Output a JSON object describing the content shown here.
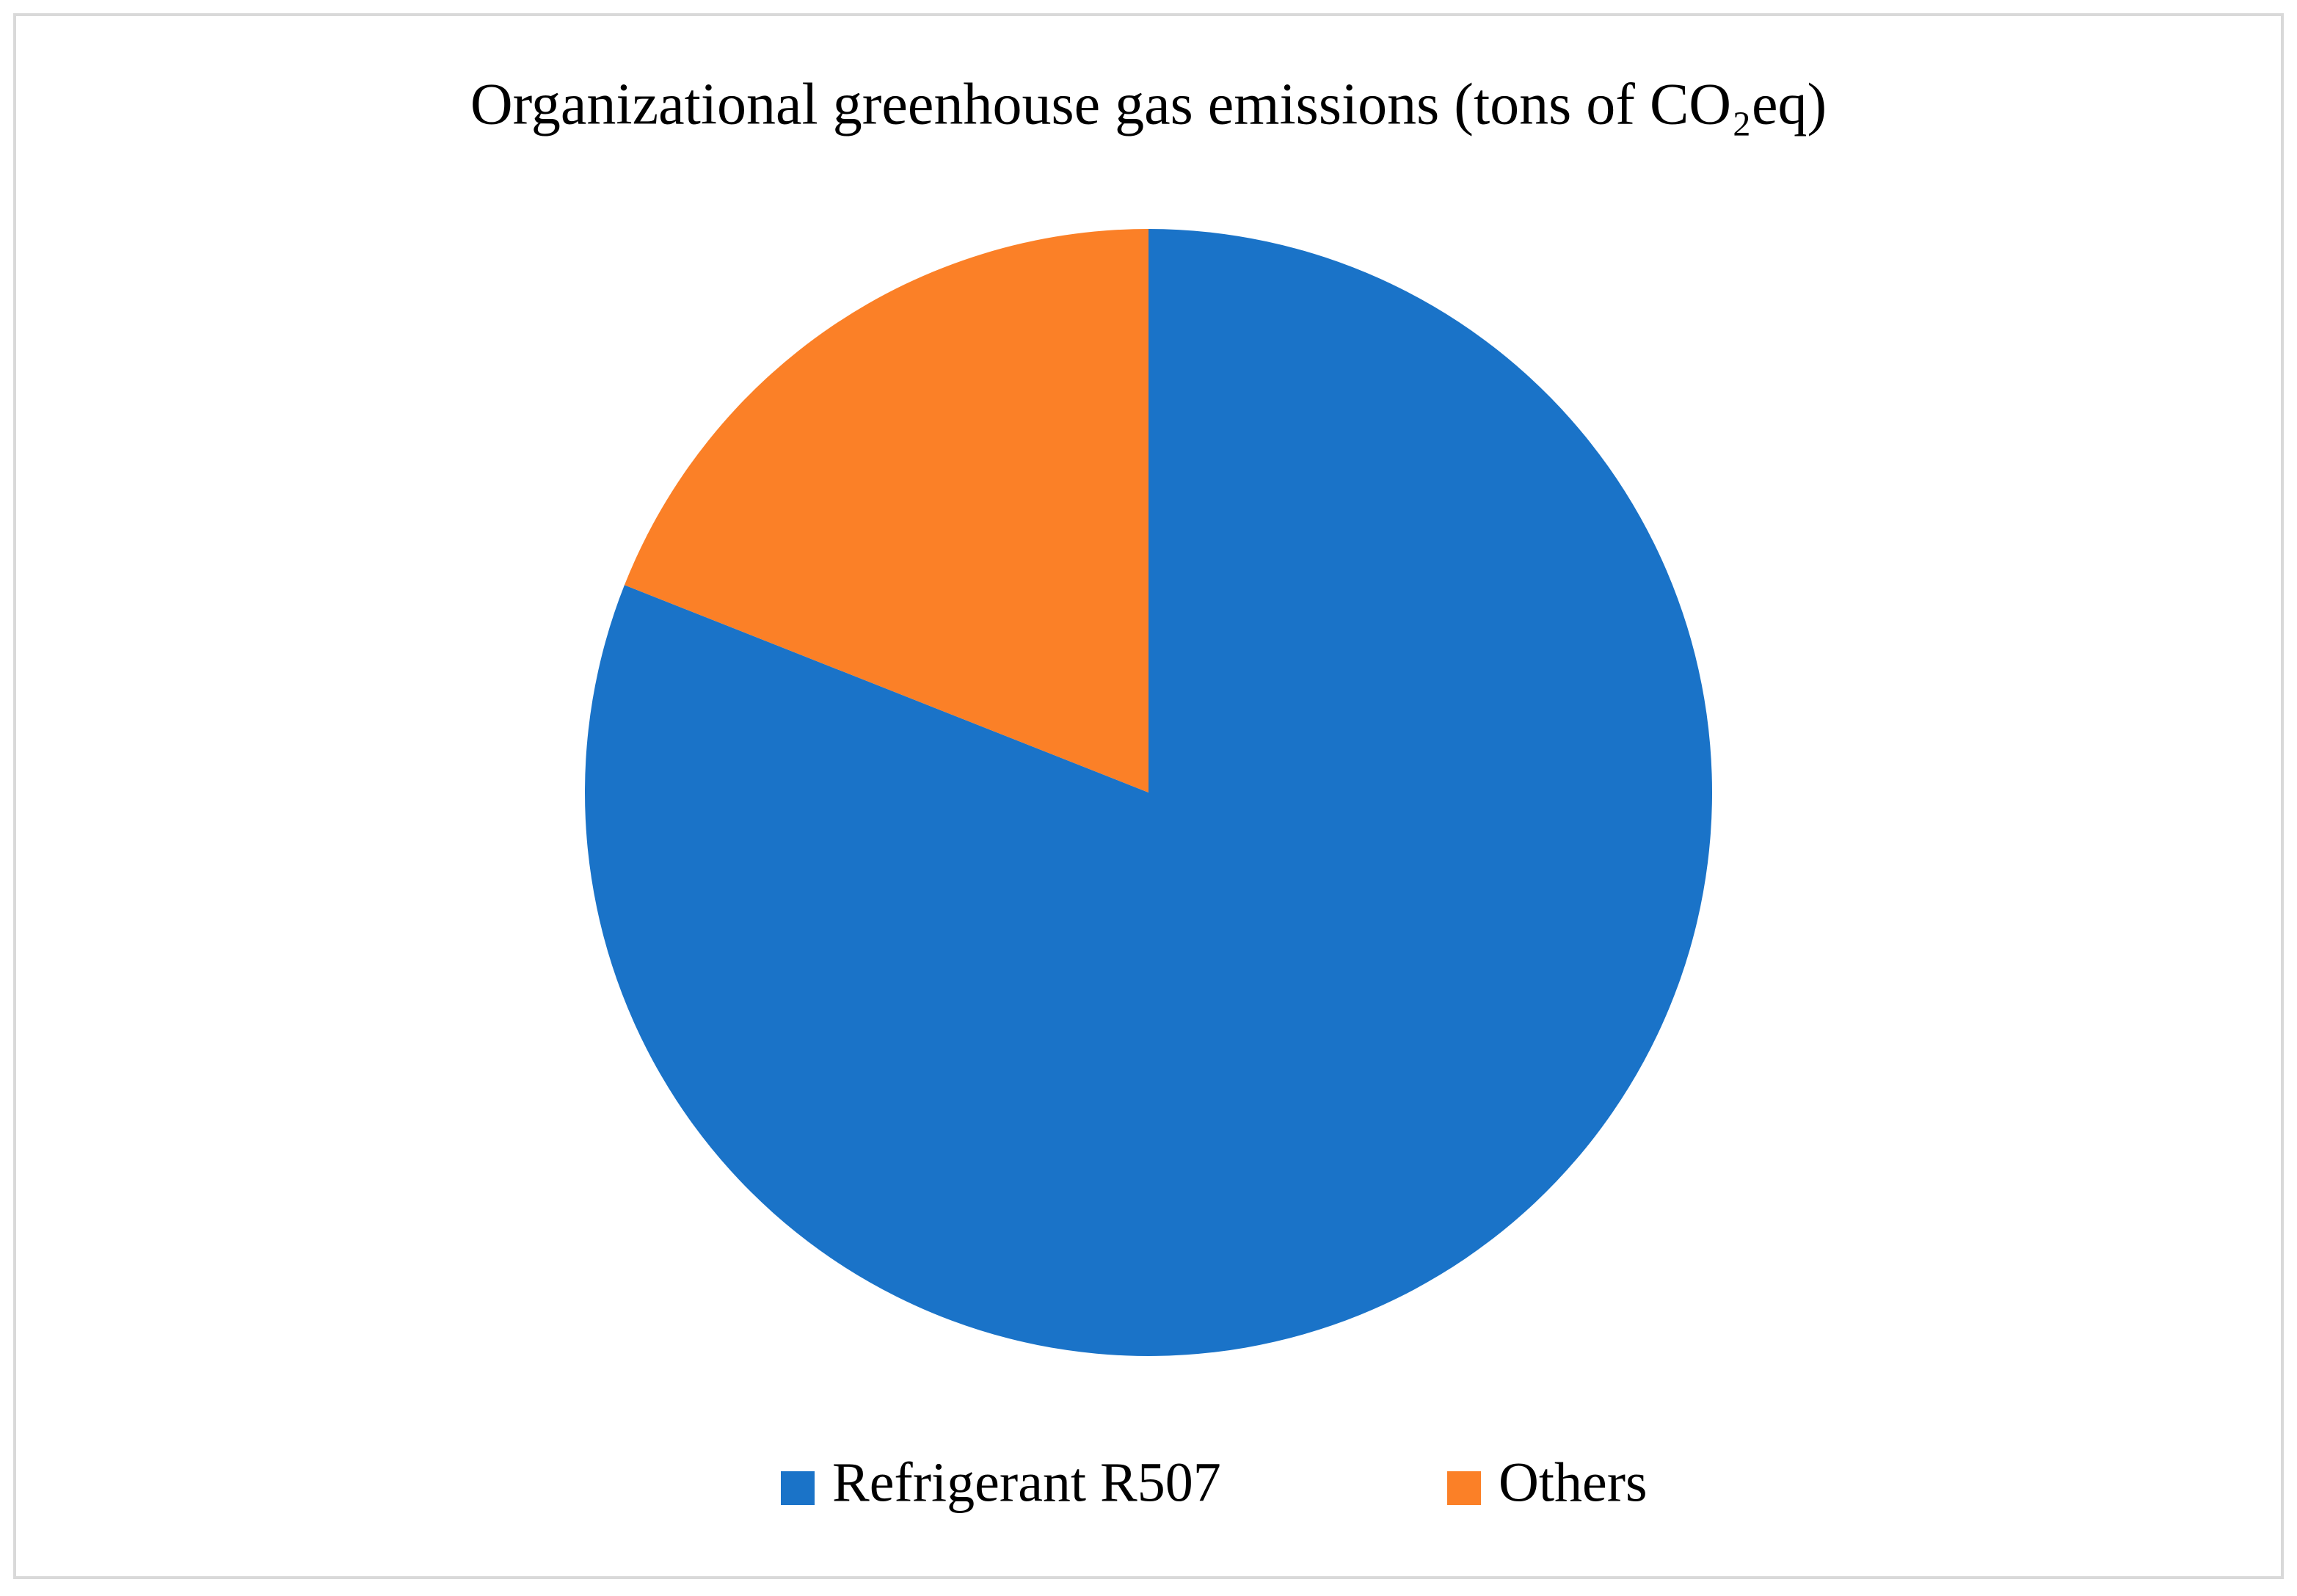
{
  "chart_data": {
    "type": "pie",
    "title": "Organizational greenhouse gas emissions (tons of CO₂eq)",
    "categories": [
      "Refrigerant R507",
      "Others"
    ],
    "values": [
      81,
      19
    ],
    "colors": [
      "#1a73c8",
      "#fb8027"
    ],
    "legend": "bottom"
  }
}
